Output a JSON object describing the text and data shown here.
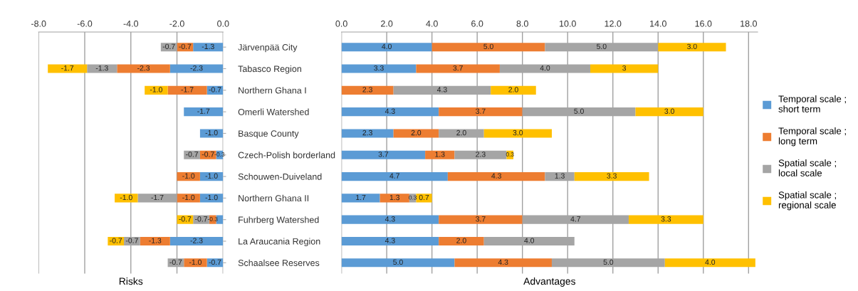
{
  "chart_data": [
    {
      "type": "bar",
      "orientation": "horizontal",
      "stacked": true,
      "xlabel": "Risks",
      "categories": [
        "Järvenpää City",
        "Tabasco Region",
        "Northern Ghana I",
        "Omerli Watershed",
        "Basque County",
        "Czech-Polish borderland",
        "Schouwen-Duiveland",
        "Northern Ghana II",
        "Fuhrberg Watershed",
        "La Araucania Region",
        "Schaalsee Reserves"
      ],
      "series": [
        {
          "color": "#5b9bd5",
          "values": [
            -1.3,
            -2.3,
            -0.7,
            -1.7,
            -1.0,
            -0.3,
            -1.0,
            -1.0,
            -0.3,
            -2.3,
            -0.7
          ],
          "value_labels": [
            "-1.3",
            "-2.3",
            "-0.7",
            "-1.7",
            "-1.0",
            "-0.3",
            "-1.0",
            "-1.0",
            null,
            "-2.3",
            "-0.7"
          ]
        },
        {
          "color": "#ed7d31",
          "values": [
            -0.7,
            -2.3,
            -1.7,
            null,
            null,
            -0.7,
            -1.0,
            -1.0,
            -0.3,
            -1.3,
            -1.0
          ],
          "value_labels": [
            "-0.7",
            "-2.3",
            "-1.7",
            null,
            null,
            "-0.7",
            "-1.0",
            "-1.0",
            "-0.3",
            "-1.3",
            "-1.0"
          ]
        },
        {
          "color": "#a5a5a5",
          "values": [
            -0.7,
            -1.3,
            null,
            null,
            null,
            -0.7,
            null,
            -1.7,
            -0.7,
            -0.7,
            -0.7
          ],
          "value_labels": [
            "-0.7",
            "-1.3",
            null,
            null,
            null,
            "-0.7",
            null,
            "-1.7",
            "-0.7",
            "-0.7",
            "-0.7"
          ]
        },
        {
          "color": "#ffc000",
          "values": [
            null,
            -1.7,
            -1.0,
            null,
            null,
            null,
            null,
            -1.0,
            -0.7,
            -0.7,
            null
          ],
          "value_labels": [
            null,
            "-1.7",
            "-1.0",
            null,
            null,
            null,
            null,
            "-1.0",
            "-0.7",
            "-0.7",
            null
          ]
        }
      ],
      "xlim": [
        -8,
        0
      ],
      "xticks": [
        {
          "value": -8,
          "label": "-8.0"
        },
        {
          "value": -6,
          "label": "-6.0"
        },
        {
          "value": -4,
          "label": "-4.0"
        },
        {
          "value": -2,
          "label": "-2.0"
        },
        {
          "value": 0,
          "label": "0.0"
        }
      ],
      "grid": "x",
      "legend": false
    },
    {
      "type": "bar",
      "orientation": "horizontal",
      "stacked": true,
      "xlabel": "Advantages",
      "categories": [
        null,
        null,
        null,
        null,
        null,
        null,
        null,
        null,
        null,
        null,
        null
      ],
      "series": [
        {
          "name": "Temporal scale ; short term",
          "color": "#5b9bd5",
          "values": [
            4.0,
            3.3,
            null,
            4.3,
            2.3,
            3.7,
            4.7,
            1.7,
            4.3,
            4.3,
            5.0
          ],
          "value_labels": [
            "4.0",
            "3.3",
            null,
            "4.3",
            "2.3",
            "3.7",
            "4.7",
            "1.7",
            "4.3",
            "4.3",
            "5.0"
          ]
        },
        {
          "name": "Temporal scale ; long term",
          "color": "#ed7d31",
          "values": [
            5.0,
            3.7,
            2.3,
            3.7,
            2.0,
            1.3,
            4.3,
            1.3,
            3.7,
            2.0,
            4.3
          ],
          "value_labels": [
            "5.0",
            "3.7",
            "2.3",
            "3.7",
            "2.0",
            "1.3",
            "4.3",
            "1.3",
            "3.7",
            "2.0",
            "4.3"
          ]
        },
        {
          "name": "Spatial scale ; local scale",
          "color": "#a5a5a5",
          "values": [
            5.0,
            4.0,
            4.3,
            5.0,
            2.0,
            2.3,
            1.3,
            0.3,
            4.7,
            4.0,
            5.0
          ],
          "value_labels": [
            "5.0",
            "4.0",
            "4.3",
            "5.0",
            "2.0",
            "2.3",
            "1.3",
            "0.3",
            "4.7",
            "4.0",
            "5.0"
          ]
        },
        {
          "name": "Spatial scale ; regional scale",
          "color": "#ffc000",
          "values": [
            3.0,
            3,
            2.0,
            3.0,
            3.0,
            0.3,
            3.3,
            0.7,
            3.3,
            null,
            4.0
          ],
          "value_labels": [
            "3.0",
            "3",
            "2.0",
            "3.0",
            "3.0",
            "0.3",
            "3.3",
            "0.7",
            "3.3",
            null,
            "4.0"
          ]
        }
      ],
      "xlim": [
        0,
        18.4
      ],
      "xticks": [
        {
          "value": 0,
          "label": "0.0"
        },
        {
          "value": 2,
          "label": "2.0"
        },
        {
          "value": 4,
          "label": "4.0"
        },
        {
          "value": 6,
          "label": "6.0"
        },
        {
          "value": 8,
          "label": "8.0"
        },
        {
          "value": 10,
          "label": "10.0"
        },
        {
          "value": 12,
          "label": "12.0"
        },
        {
          "value": 14,
          "label": "14.0"
        },
        {
          "value": 16,
          "label": "16.0"
        },
        {
          "value": 18,
          "label": "18.0"
        }
      ],
      "grid": "x",
      "legend": "right",
      "tick_labels": "x"
    }
  ]
}
